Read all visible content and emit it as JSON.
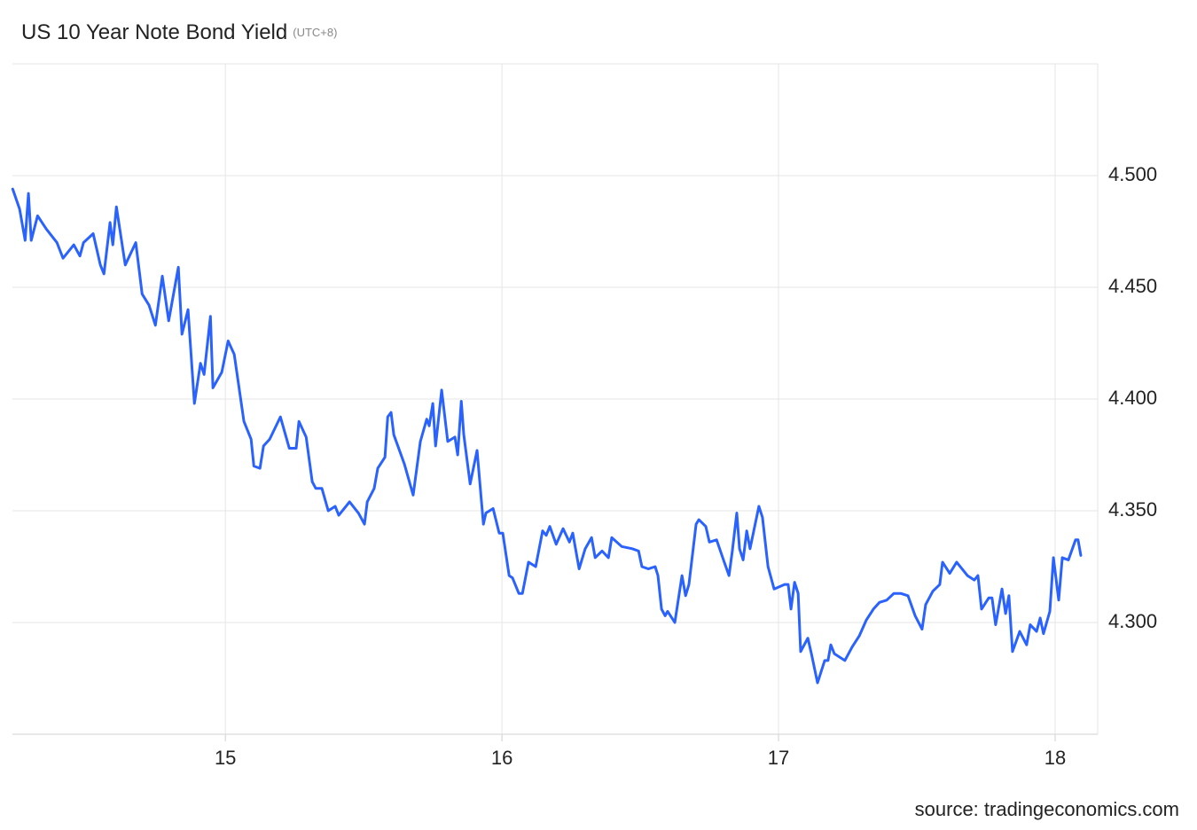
{
  "chart_data": {
    "type": "line",
    "title": "US 10 Year Note Bond Yield",
    "subtitle": "(UTC+8)",
    "source": "source: tradingeconomics.com",
    "xlim": [
      14.23,
      18.154
    ],
    "xticks": [
      15,
      16,
      17,
      18
    ],
    "ylim": [
      4.25,
      4.55
    ],
    "yticks": [
      {
        "value": 4.3,
        "label": "4.300"
      },
      {
        "value": 4.35,
        "label": "4.350"
      },
      {
        "value": 4.4,
        "label": "4.400"
      },
      {
        "value": 4.45,
        "label": "4.450"
      },
      {
        "value": 4.5,
        "label": "4.500"
      }
    ],
    "grid": true,
    "series": [
      {
        "color": "#2962ff",
        "x": [
          14.231,
          14.256,
          14.276,
          14.288,
          14.298,
          14.321,
          14.353,
          14.391,
          14.413,
          14.452,
          14.474,
          14.487,
          14.522,
          14.548,
          14.561,
          14.583,
          14.593,
          14.606,
          14.638,
          14.676,
          14.699,
          14.724,
          14.747,
          14.772,
          14.795,
          14.83,
          14.843,
          14.865,
          14.888,
          14.91,
          14.923,
          14.946,
          14.955,
          14.987,
          15.01,
          15.032,
          15.067,
          15.093,
          15.103,
          15.125,
          15.138,
          15.16,
          15.199,
          15.231,
          15.256,
          15.266,
          15.292,
          15.314,
          15.327,
          15.349,
          15.372,
          15.397,
          15.41,
          15.449,
          15.481,
          15.503,
          15.513,
          15.538,
          15.551,
          15.577,
          15.587,
          15.599,
          15.609,
          15.647,
          15.679,
          15.705,
          15.728,
          15.737,
          15.75,
          15.76,
          15.782,
          15.804,
          15.83,
          15.84,
          15.853,
          15.862,
          15.885,
          15.91,
          15.933,
          15.942,
          15.968,
          15.99,
          16.003,
          16.026,
          16.038,
          16.061,
          16.074,
          16.096,
          16.122,
          16.147,
          16.16,
          16.173,
          16.196,
          16.221,
          16.244,
          16.256,
          16.279,
          16.301,
          16.324,
          16.337,
          16.362,
          16.385,
          16.397,
          16.433,
          16.471,
          16.494,
          16.506,
          16.529,
          16.554,
          16.564,
          16.577,
          16.59,
          16.599,
          16.625,
          16.651,
          16.664,
          16.676,
          16.702,
          16.712,
          16.737,
          16.75,
          16.776,
          16.801,
          16.821,
          16.833,
          16.849,
          16.859,
          16.872,
          16.885,
          16.897,
          16.929,
          16.942,
          16.962,
          16.984,
          17.022,
          17.035,
          17.045,
          17.058,
          17.071,
          17.08,
          17.106,
          17.119,
          17.141,
          17.167,
          17.179,
          17.189,
          17.202,
          17.24,
          17.266,
          17.292,
          17.317,
          17.343,
          17.365,
          17.391,
          17.417,
          17.442,
          17.468,
          17.494,
          17.519,
          17.532,
          17.558,
          17.583,
          17.593,
          17.619,
          17.644,
          17.683,
          17.708,
          17.721,
          17.734,
          17.76,
          17.772,
          17.785,
          17.808,
          17.821,
          17.833,
          17.846,
          17.872,
          17.897,
          17.91,
          17.933,
          17.946,
          17.958,
          17.981,
          17.994,
          18.013,
          18.026,
          18.048,
          18.074,
          18.083,
          18.093
        ],
        "values": [
          4.494,
          4.485,
          4.471,
          4.492,
          4.471,
          4.482,
          4.476,
          4.47,
          4.463,
          4.469,
          4.464,
          4.47,
          4.474,
          4.46,
          4.456,
          4.479,
          4.469,
          4.486,
          4.46,
          4.47,
          4.447,
          4.442,
          4.433,
          4.455,
          4.435,
          4.459,
          4.429,
          4.44,
          4.398,
          4.416,
          4.411,
          4.437,
          4.405,
          4.412,
          4.426,
          4.42,
          4.39,
          4.382,
          4.37,
          4.369,
          4.379,
          4.382,
          4.392,
          4.378,
          4.378,
          4.39,
          4.383,
          4.363,
          4.36,
          4.36,
          4.35,
          4.352,
          4.348,
          4.354,
          4.349,
          4.344,
          4.354,
          4.36,
          4.369,
          4.374,
          4.392,
          4.394,
          4.384,
          4.371,
          4.357,
          4.381,
          4.391,
          4.388,
          4.398,
          4.379,
          4.404,
          4.381,
          4.383,
          4.375,
          4.399,
          4.384,
          4.362,
          4.377,
          4.344,
          4.349,
          4.351,
          4.34,
          4.34,
          4.321,
          4.32,
          4.313,
          4.313,
          4.327,
          4.325,
          4.341,
          4.339,
          4.343,
          4.335,
          4.342,
          4.336,
          4.34,
          4.324,
          4.333,
          4.338,
          4.329,
          4.332,
          4.329,
          4.338,
          4.334,
          4.333,
          4.332,
          4.325,
          4.324,
          4.325,
          4.321,
          4.306,
          4.303,
          4.305,
          4.3,
          4.321,
          4.312,
          4.317,
          4.344,
          4.346,
          4.343,
          4.336,
          4.337,
          4.328,
          4.321,
          4.332,
          4.349,
          4.333,
          4.328,
          4.341,
          4.333,
          4.352,
          4.347,
          4.325,
          4.315,
          4.317,
          4.317,
          4.306,
          4.318,
          4.313,
          4.287,
          4.293,
          4.286,
          4.273,
          4.283,
          4.283,
          4.29,
          4.286,
          4.283,
          4.289,
          4.294,
          4.301,
          4.306,
          4.309,
          4.31,
          4.313,
          4.313,
          4.312,
          4.303,
          4.297,
          4.308,
          4.314,
          4.317,
          4.327,
          4.322,
          4.327,
          4.321,
          4.319,
          4.321,
          4.306,
          4.311,
          4.311,
          4.299,
          4.315,
          4.304,
          4.312,
          4.287,
          4.296,
          4.29,
          4.299,
          4.296,
          4.302,
          4.295,
          4.305,
          4.329,
          4.31,
          4.329,
          4.328,
          4.337,
          4.337,
          4.33
        ]
      }
    ]
  }
}
